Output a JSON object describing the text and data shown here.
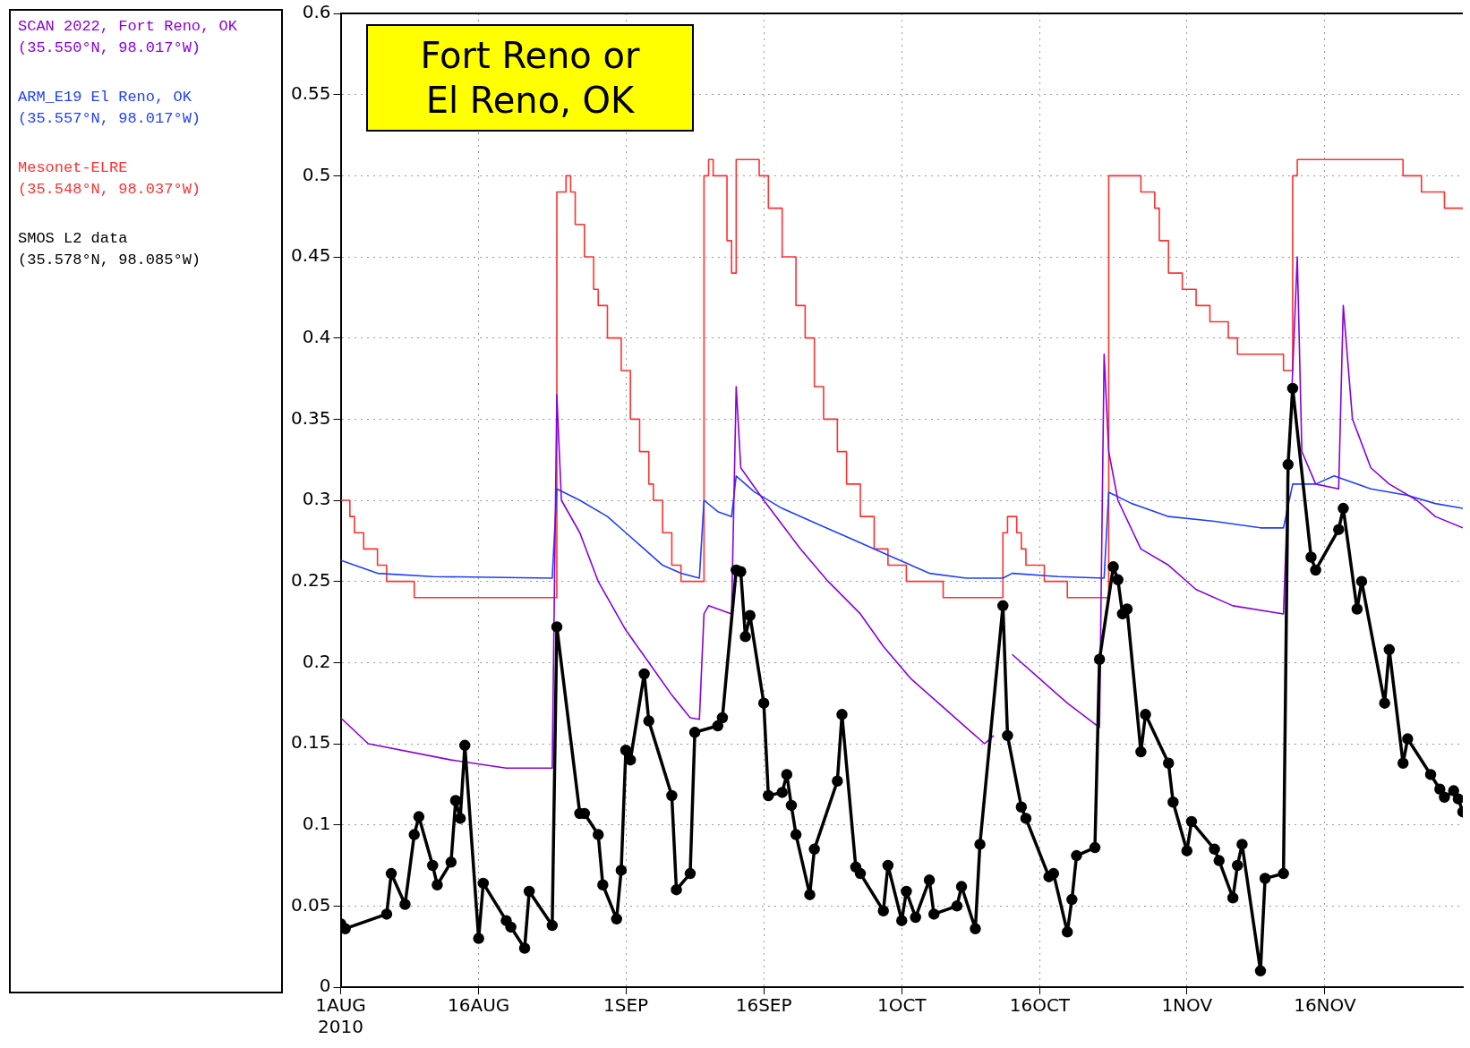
{
  "chart_data": {
    "type": "line",
    "title": "Fort Reno or\nEl Reno, OK",
    "legend": "left",
    "grid": true,
    "xlim": [
      "2010-08-01",
      "2010-12-01"
    ],
    "xticks": [
      {
        "value": "2010-08-01",
        "label": "1AUG\n2010"
      },
      {
        "value": "2010-08-16",
        "label": "16AUG"
      },
      {
        "value": "2010-09-01",
        "label": "1SEP"
      },
      {
        "value": "2010-09-16",
        "label": "16SEP"
      },
      {
        "value": "2010-10-01",
        "label": "1OCT"
      },
      {
        "value": "2010-10-16",
        "label": "16OCT"
      },
      {
        "value": "2010-11-01",
        "label": "1NOV"
      },
      {
        "value": "2010-11-16",
        "label": "16NOV"
      }
    ],
    "ylim": [
      0,
      0.6
    ],
    "yticks": [
      0,
      0.05,
      0.1,
      0.15,
      0.2,
      0.25,
      0.3,
      0.35,
      0.4,
      0.45,
      0.5,
      0.55,
      0.6
    ],
    "series": [
      {
        "name": "SCAN 2022, Fort Reno, OK\n(35.550°N, 98.017°W)",
        "color": "#8800dd",
        "type": "line",
        "marker": "none",
        "x": [
          "2010-08-01",
          "2010-08-04",
          "2010-08-13",
          "2010-08-19",
          "2010-08-24",
          "2010-08-24T12:00",
          "2010-08-25",
          "2010-08-27",
          "2010-08-29",
          "2010-09-01",
          "2010-09-03T12:00",
          "2010-09-06",
          "2010-09-08",
          "2010-09-09",
          "2010-09-09T12:00",
          "2010-09-10",
          "2010-09-12T12:00",
          "2010-09-13",
          "2010-09-13T12:00",
          "2010-09-16",
          "2010-09-20",
          "2010-09-23",
          "2010-09-26T12:00",
          "2010-09-29",
          "2010-10-02",
          "2010-10-05",
          "2010-10-08",
          "2010-10-10",
          "2010-10-11",
          "2010-10-12",
          "2010-10-13",
          "2010-10-16",
          "2010-10-19",
          "2010-10-22T12:00",
          "2010-10-23",
          "2010-10-23T12:00",
          "2010-10-24T12:00",
          "2010-10-27",
          "2010-10-30",
          "2010-11-02",
          "2010-11-06",
          "2010-11-11T12:00",
          "2010-11-12",
          "2010-11-13",
          "2010-11-13T12:00",
          "2010-11-15",
          "2010-11-17T12:00",
          "2010-11-18",
          "2010-11-19",
          "2010-11-21",
          "2010-11-23",
          "2010-11-26",
          "2010-11-28",
          "2010-12-01"
        ],
        "values": [
          0.166,
          0.15,
          0.14,
          0.135,
          0.135,
          0.365,
          0.3,
          0.28,
          0.25,
          0.22,
          0.2,
          0.18,
          0.166,
          0.165,
          0.23,
          0.235,
          0.23,
          0.37,
          0.32,
          0.3,
          0.27,
          0.25,
          0.23,
          0.21,
          0.19,
          0.175,
          0.16,
          0.15,
          0.155,
          null,
          0.205,
          0.19,
          0.175,
          0.16,
          0.39,
          0.33,
          0.3,
          0.27,
          0.26,
          0.245,
          0.235,
          0.23,
          0.31,
          0.45,
          0.33,
          0.31,
          0.307,
          0.42,
          0.35,
          0.32,
          0.31,
          0.3,
          0.29,
          0.283
        ]
      },
      {
        "name": "ARM_E19 El Reno, OK\n(35.557°N, 98.017°W)",
        "color": "#1f3fff",
        "type": "line",
        "marker": "none",
        "x": [
          "2010-08-01",
          "2010-08-05",
          "2010-08-11",
          "2010-08-24",
          "2010-08-24T12:00",
          "2010-08-27",
          "2010-08-30",
          "2010-09-01",
          "2010-09-03",
          "2010-09-05",
          "2010-09-07",
          "2010-09-09",
          "2010-09-09T12:00",
          "2010-09-11",
          "2010-09-12T12:00",
          "2010-09-13",
          "2010-09-15",
          "2010-09-18",
          "2010-09-22",
          "2010-09-26",
          "2010-09-30",
          "2010-10-04",
          "2010-10-08",
          "2010-10-12",
          "2010-10-13",
          "2010-10-18",
          "2010-10-23",
          "2010-10-23T12:00",
          "2010-10-26",
          "2010-10-30",
          "2010-11-04",
          "2010-11-09",
          "2010-11-11T12:00",
          "2010-11-12T12:00",
          "2010-11-15",
          "2010-11-17",
          "2010-11-21",
          "2010-11-25",
          "2010-11-28",
          "2010-12-01"
        ],
        "values": [
          0.263,
          0.255,
          0.253,
          0.252,
          0.307,
          0.3,
          0.29,
          0.28,
          0.27,
          0.26,
          0.255,
          0.252,
          0.3,
          0.293,
          0.29,
          0.315,
          0.305,
          0.295,
          0.285,
          0.275,
          0.265,
          0.255,
          0.252,
          0.252,
          0.255,
          0.253,
          0.252,
          0.305,
          0.298,
          0.29,
          0.287,
          0.283,
          0.283,
          0.31,
          0.31,
          0.315,
          0.307,
          0.303,
          0.298,
          0.295
        ]
      },
      {
        "name": "Mesonet-ELRE\n(35.548°N, 98.037°W)",
        "color": "#ff3030",
        "type": "step",
        "marker": "none",
        "x": [
          "2010-08-01",
          "2010-08-02",
          "2010-08-02T12:00",
          "2010-08-03T12:00",
          "2010-08-05",
          "2010-08-06",
          "2010-08-09",
          "2010-08-24T12:00",
          "2010-08-25T12:00",
          "2010-08-26",
          "2010-08-26T12:00",
          "2010-08-27T12:00",
          "2010-08-28T12:00",
          "2010-08-29",
          "2010-08-30",
          "2010-08-31T12:00",
          "2010-09-01T12:00",
          "2010-09-02T12:00",
          "2010-09-03T12:00",
          "2010-09-04",
          "2010-09-05",
          "2010-09-06",
          "2010-09-07",
          "2010-09-09T12:00",
          "2010-09-10",
          "2010-09-10T12:00",
          "2010-09-12",
          "2010-09-12T12:00",
          "2010-09-13",
          "2010-09-15T12:00",
          "2010-09-16T12:00",
          "2010-09-18",
          "2010-09-19T12:00",
          "2010-09-20T12:00",
          "2010-09-21T12:00",
          "2010-09-22T12:00",
          "2010-09-24",
          "2010-09-25",
          "2010-09-26T12:00",
          "2010-09-28",
          "2010-09-29T12:00",
          "2010-10-01T12:00",
          "2010-10-05T12:00",
          "2010-10-12",
          "2010-10-12T12:00",
          "2010-10-13T12:00",
          "2010-10-14",
          "2010-10-14T12:00",
          "2010-10-16T12:00",
          "2010-10-19",
          "2010-10-23T12:00",
          "2010-10-27",
          "2010-10-28T12:00",
          "2010-10-29",
          "2010-10-30",
          "2010-10-31T12:00",
          "2010-11-02",
          "2010-11-03T12:00",
          "2010-11-05T12:00",
          "2010-11-06T12:00",
          "2010-11-11T12:00",
          "2010-11-12T12:00",
          "2010-11-13",
          "2010-11-24T12:00",
          "2010-11-26T12:00",
          "2010-11-29",
          "2010-12-01"
        ],
        "values": [
          0.3,
          0.29,
          0.28,
          0.27,
          0.26,
          0.25,
          0.24,
          0.49,
          0.5,
          0.49,
          0.47,
          0.45,
          0.43,
          0.42,
          0.4,
          0.38,
          0.35,
          0.33,
          0.31,
          0.3,
          0.28,
          0.26,
          0.25,
          0.5,
          0.51,
          0.5,
          0.46,
          0.44,
          0.51,
          0.5,
          0.48,
          0.45,
          0.42,
          0.4,
          0.37,
          0.35,
          0.33,
          0.31,
          0.29,
          0.27,
          0.26,
          0.25,
          0.24,
          0.28,
          0.29,
          0.28,
          0.27,
          0.26,
          0.25,
          0.24,
          0.5,
          0.49,
          0.48,
          0.46,
          0.44,
          0.43,
          0.42,
          0.41,
          0.4,
          0.39,
          0.38,
          0.5,
          0.51,
          0.5,
          0.49,
          0.48,
          0.48
        ]
      },
      {
        "name": "SMOS L2 data\n(35.578°N, 98.085°W)",
        "color": "#000000",
        "type": "line",
        "marker": "circle",
        "x": [
          "2010-08-01",
          "2010-08-01T12:00",
          "2010-08-06",
          "2010-08-06T12:00",
          "2010-08-08",
          "2010-08-09",
          "2010-08-09T12:00",
          "2010-08-11",
          "2010-08-11T12:00",
          "2010-08-13",
          "2010-08-13T12:00",
          "2010-08-14",
          "2010-08-14T12:00",
          "2010-08-16",
          "2010-08-16T12:00",
          "2010-08-19",
          "2010-08-19T12:00",
          "2010-08-21",
          "2010-08-21T12:00",
          "2010-08-24",
          "2010-08-24T12:00",
          "2010-08-27",
          "2010-08-27T12:00",
          "2010-08-29",
          "2010-08-29T12:00",
          "2010-08-31",
          "2010-08-31T12:00",
          "2010-09-01",
          "2010-09-01T12:00",
          "2010-09-03",
          "2010-09-03T12:00",
          "2010-09-06",
          "2010-09-06T12:00",
          "2010-09-08",
          "2010-09-08T12:00",
          "2010-09-11",
          "2010-09-11T12:00",
          "2010-09-13",
          "2010-09-13T12:00",
          "2010-09-14",
          "2010-09-14T12:00",
          "2010-09-16",
          "2010-09-16T12:00",
          "2010-09-18",
          "2010-09-18T12:00",
          "2010-09-19",
          "2010-09-19T12:00",
          "2010-09-21",
          "2010-09-21T12:00",
          "2010-09-24",
          "2010-09-24T12:00",
          "2010-09-26",
          "2010-09-26T12:00",
          "2010-09-29",
          "2010-09-29T12:00",
          "2010-10-01",
          "2010-10-01T12:00",
          "2010-10-02T12:00",
          "2010-10-04",
          "2010-10-04T12:00",
          "2010-10-07",
          "2010-10-07T12:00",
          "2010-10-09",
          "2010-10-09T12:00",
          "2010-10-12",
          "2010-10-12T12:00",
          "2010-10-14",
          "2010-10-14T12:00",
          "2010-10-17",
          "2010-10-17T12:00",
          "2010-10-19",
          "2010-10-19T12:00",
          "2010-10-20",
          "2010-10-22",
          "2010-10-22T12:00",
          "2010-10-24",
          "2010-10-24T12:00",
          "2010-10-25",
          "2010-10-25T12:00",
          "2010-10-27",
          "2010-10-27T12:00",
          "2010-10-30",
          "2010-10-30T12:00",
          "2010-11-01",
          "2010-11-01T12:00",
          "2010-11-04",
          "2010-11-04T12:00",
          "2010-11-06",
          "2010-11-06T12:00",
          "2010-11-07",
          "2010-11-09",
          "2010-11-09T12:00",
          "2010-11-11T12:00",
          "2010-11-12",
          "2010-11-12T12:00",
          "2010-11-14T12:00",
          "2010-11-15",
          "2010-11-17T12:00",
          "2010-11-18",
          "2010-11-19T12:00",
          "2010-11-20",
          "2010-11-22T12:00",
          "2010-11-23",
          "2010-11-24T12:00",
          "2010-11-25",
          "2010-11-27T12:00",
          "2010-11-28T12:00",
          "2010-11-29",
          "2010-11-30",
          "2010-11-30T12:00",
          "2010-12-01"
        ],
        "values": [
          0.039,
          0.036,
          0.045,
          0.07,
          0.051,
          0.094,
          0.105,
          0.075,
          0.063,
          0.077,
          0.115,
          0.104,
          0.149,
          0.03,
          0.064,
          0.041,
          0.037,
          0.024,
          0.059,
          0.038,
          0.222,
          0.107,
          0.107,
          0.094,
          0.063,
          0.042,
          0.072,
          0.146,
          0.14,
          0.193,
          0.164,
          0.118,
          0.06,
          0.07,
          0.157,
          0.161,
          0.166,
          0.257,
          0.256,
          0.216,
          0.229,
          0.175,
          0.118,
          0.12,
          0.131,
          0.112,
          0.094,
          0.057,
          0.085,
          0.127,
          0.168,
          0.074,
          0.07,
          0.047,
          0.075,
          0.041,
          0.059,
          0.043,
          0.066,
          0.045,
          0.05,
          0.062,
          0.036,
          0.088,
          0.235,
          0.155,
          0.111,
          0.104,
          0.068,
          0.07,
          0.034,
          0.054,
          0.081,
          0.086,
          0.202,
          0.259,
          0.251,
          0.23,
          0.233,
          0.145,
          0.168,
          0.138,
          0.114,
          0.084,
          0.102,
          0.085,
          0.078,
          0.055,
          0.075,
          0.088,
          0.01,
          0.067,
          0.07,
          0.322,
          0.369,
          0.265,
          0.257,
          0.282,
          0.295,
          0.233,
          0.25,
          0.175,
          0.208,
          0.138,
          0.153,
          0.131,
          0.122,
          0.117,
          0.121,
          0.116,
          0.108
        ]
      }
    ]
  }
}
